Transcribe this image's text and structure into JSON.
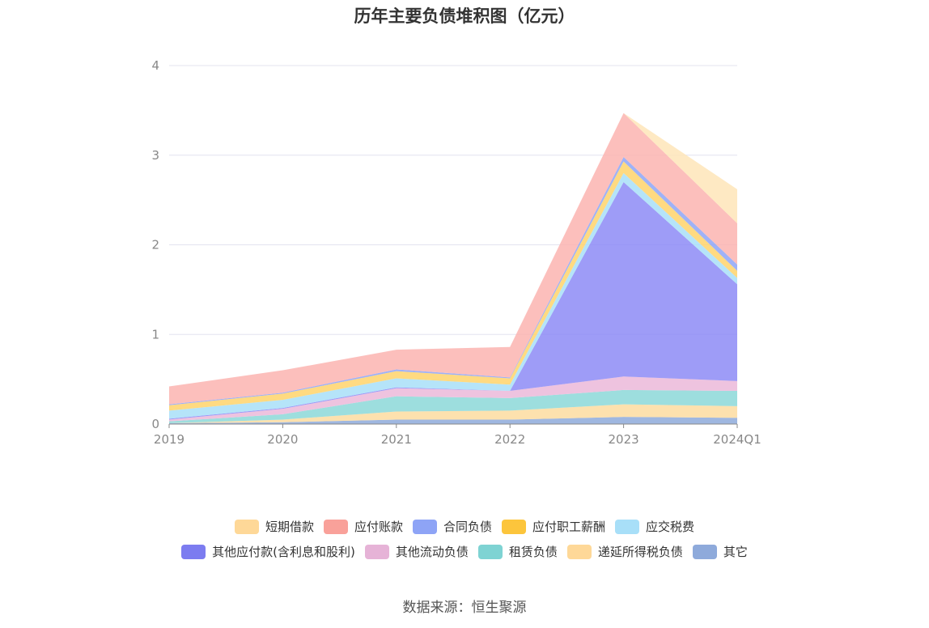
{
  "title": "历年主要负债堆积图（亿元）",
  "source": "数据来源：恒生聚源",
  "chart_data": {
    "type": "area",
    "stacked": true,
    "categories": [
      "2019",
      "2020",
      "2021",
      "2022",
      "2023",
      "2024Q1"
    ],
    "ylim": [
      0,
      4
    ],
    "yticks": [
      0,
      1,
      2,
      3,
      4
    ],
    "grid": true,
    "legend_position": "bottom",
    "series": [
      {
        "name": "其它",
        "color": "#8eaadb",
        "values": [
          0.01,
          0.02,
          0.05,
          0.05,
          0.08,
          0.07
        ]
      },
      {
        "name": "递延所得税负债",
        "color": "#fddca0",
        "values": [
          0.0,
          0.03,
          0.09,
          0.1,
          0.14,
          0.13
        ]
      },
      {
        "name": "租赁负债",
        "color": "#8cd8d8",
        "values": [
          0.02,
          0.06,
          0.17,
          0.14,
          0.16,
          0.17
        ]
      },
      {
        "name": "其他流动负债",
        "color": "#ebb8d9",
        "values": [
          0.02,
          0.06,
          0.09,
          0.08,
          0.15,
          0.11
        ]
      },
      {
        "name": "其他应付款(含利息和股利)",
        "color": "#8d8bf6",
        "values": [
          0.01,
          0.01,
          0.01,
          0.0,
          2.17,
          1.08
        ]
      },
      {
        "name": "应交税费",
        "color": "#a8dff8",
        "values": [
          0.09,
          0.09,
          0.1,
          0.07,
          0.1,
          0.07
        ]
      },
      {
        "name": "应付职工薪酬",
        "color": "#ffd36b",
        "values": [
          0.06,
          0.07,
          0.08,
          0.07,
          0.13,
          0.08
        ]
      },
      {
        "name": "合同负债",
        "color": "#8ea4f6",
        "values": [
          0.01,
          0.01,
          0.02,
          0.01,
          0.05,
          0.07
        ]
      },
      {
        "name": "应付账款",
        "color": "#fbb4b0",
        "values": [
          0.2,
          0.25,
          0.22,
          0.34,
          0.49,
          0.46
        ]
      },
      {
        "name": "短期借款",
        "color": "#fee5b8",
        "values": [
          0.0,
          0.0,
          0.0,
          0.0,
          0.0,
          0.38
        ]
      }
    ]
  },
  "legend": [
    [
      {
        "label": "短期借款",
        "color": "#fed898"
      },
      {
        "label": "应付账款",
        "color": "#f9a19a"
      },
      {
        "label": "合同负债",
        "color": "#8ea4f6"
      },
      {
        "label": "应付职工薪酬",
        "color": "#fcc53c"
      },
      {
        "label": "应交税费",
        "color": "#a8dff8"
      }
    ],
    [
      {
        "label": "其他应付款(含利息和股利)",
        "color": "#7c7cf0"
      },
      {
        "label": "其他流动负债",
        "color": "#e6b3d7"
      },
      {
        "label": "租赁负债",
        "color": "#7ed3d3"
      },
      {
        "label": "递延所得税负债",
        "color": "#fed898"
      },
      {
        "label": "其它",
        "color": "#8eaadb"
      }
    ]
  ]
}
